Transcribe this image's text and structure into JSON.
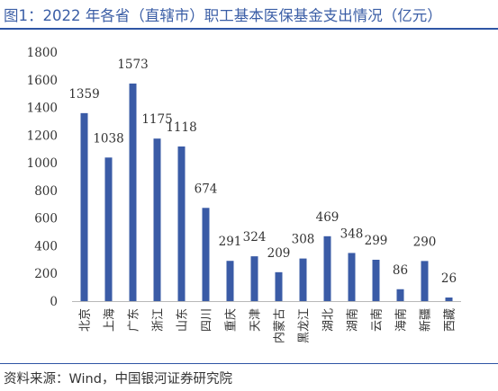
{
  "header": {
    "title": "图1：2022 年各省（直辖市）职工基本医保基金支出情况（亿元）"
  },
  "footer": {
    "source": "资料来源：Wind，中国银河证券研究院"
  },
  "chart_data": {
    "type": "bar",
    "title": "图1：2022 年各省（直辖市）职工基本医保基金支出情况（亿元）",
    "xlabel": "",
    "ylabel": "",
    "categories": [
      "北京",
      "上海",
      "广东",
      "浙江",
      "山东",
      "四川",
      "重庆",
      "天津",
      "内蒙古",
      "黑龙江",
      "湖北",
      "湖南",
      "云南",
      "海南",
      "新疆",
      "西藏"
    ],
    "values": [
      1359,
      1038,
      1573,
      1175,
      1118,
      674,
      291,
      324,
      209,
      308,
      469,
      348,
      299,
      86,
      290,
      26
    ],
    "ylim": [
      0,
      1800
    ],
    "yticks": [
      0,
      200,
      400,
      600,
      800,
      1000,
      1200,
      1400,
      1600,
      1800
    ],
    "grid": false,
    "legend": "none",
    "colors": {
      "bar": "#3a5ba6",
      "axis": "#b8b8b8",
      "text": "#333333",
      "title": "#3b5ea6"
    }
  }
}
